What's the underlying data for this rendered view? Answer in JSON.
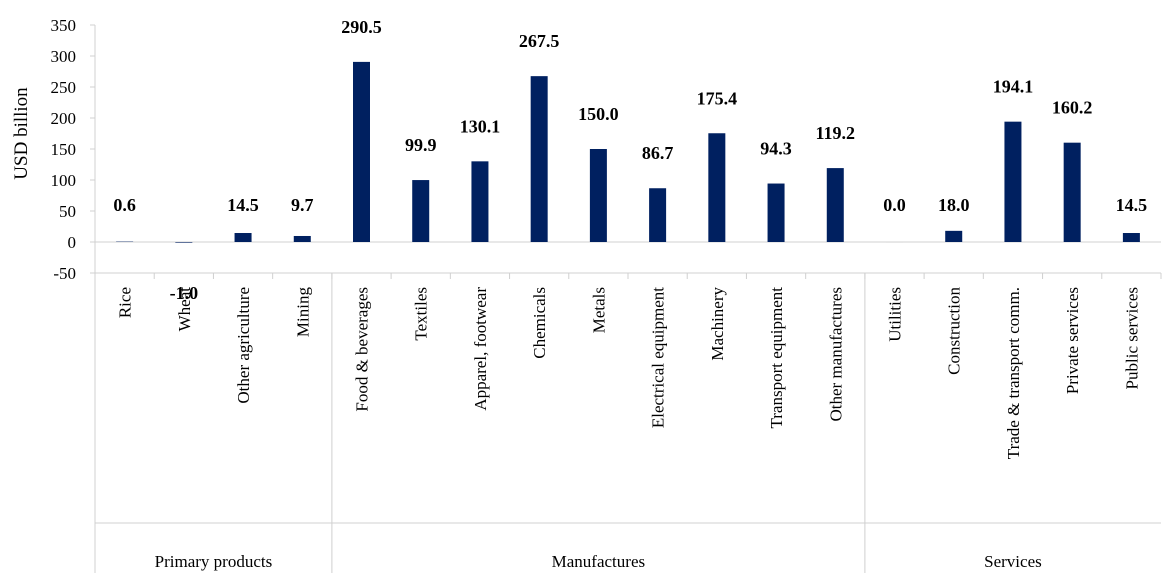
{
  "chart_data": {
    "type": "bar",
    "ylabel": "USD billion",
    "ylim": [
      -50,
      350
    ],
    "yticks": [
      -50,
      0,
      50,
      100,
      150,
      200,
      250,
      300,
      350
    ],
    "grid": false,
    "bar_color": "#002060",
    "categories": [
      "Rice",
      "Wheat",
      "Other agriculture",
      "Mining",
      "Food & beverages",
      "Textiles",
      "Apparel, footwear",
      "Chemicals",
      "Metals",
      "Electrical equipment",
      "Machinery",
      "Transport equipment",
      "Other manufactures",
      "Utilities",
      "Construction",
      "Trade & transport comm.",
      "Private services",
      "Public services"
    ],
    "values": [
      0.6,
      -1.0,
      14.5,
      9.7,
      290.5,
      99.9,
      130.1,
      267.5,
      150.0,
      86.7,
      175.4,
      94.3,
      119.2,
      0.0,
      18.0,
      194.1,
      160.2,
      14.5
    ],
    "value_labels": [
      "0.6",
      "-1.0",
      "14.5",
      "9.7",
      "290.5",
      "99.9",
      "130.1",
      "267.5",
      "150.0",
      "86.7",
      "175.4",
      "94.3",
      "119.2",
      "0.0",
      "18.0",
      "194.1",
      "160.2",
      "14.5"
    ],
    "groups": [
      {
        "name": "Primary products",
        "count": 4
      },
      {
        "name": "Manufactures",
        "count": 9
      },
      {
        "name": "Services",
        "count": 5
      }
    ]
  }
}
